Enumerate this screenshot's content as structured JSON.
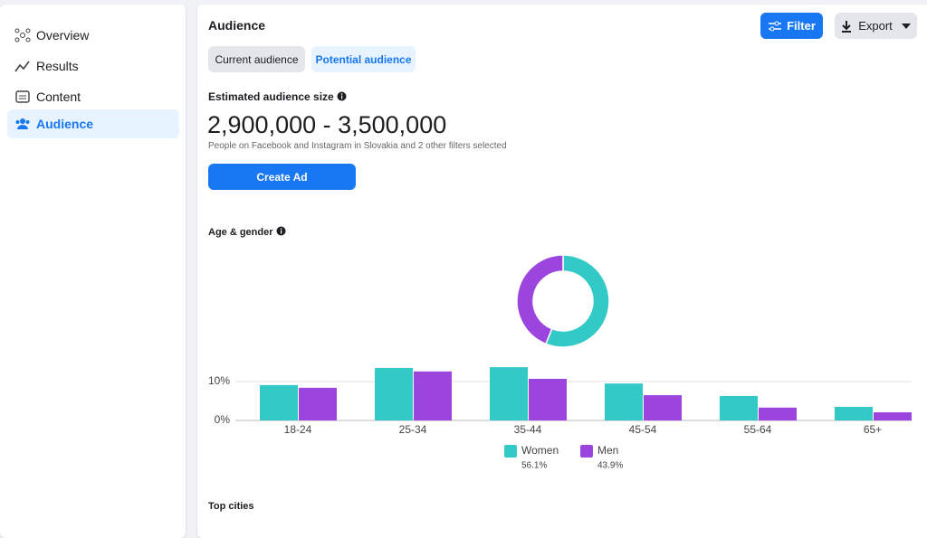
{
  "sidebar": {
    "items": [
      "Overview",
      "Results",
      "Content",
      "Audience"
    ]
  },
  "header": {
    "title": "Audience",
    "filter": "Filter",
    "export": "Export"
  },
  "tabs": [
    "Current audience",
    "Potential audience"
  ],
  "estimate": {
    "label": "Estimated audience size",
    "range": "2,900,000 - 3,500,000",
    "description": "People on Facebook and Instagram in Slovakia and 2 other filters selected",
    "button": "Create Ad"
  },
  "section": {
    "age_gender": "Age & gender",
    "top_cities": "Top cities"
  },
  "chart_data": [
    {
      "type": "pie",
      "donut": true,
      "values": [
        56.1,
        43.9
      ],
      "value_labels": [
        "56.1%",
        "43.9%"
      ],
      "colors": [
        "#33c9c7",
        "#9b44de"
      ]
    },
    {
      "type": "bar",
      "categories": [
        "18-24",
        "25-34",
        "35-44",
        "45-54",
        "55-64",
        "65+"
      ],
      "series": [
        {
          "name": "Women",
          "color": "#33c9c7",
          "values": [
            9.1,
            13.5,
            13.7,
            9.5,
            6.3,
            3.5
          ]
        },
        {
          "name": "Men",
          "color": "#9b44de",
          "values": [
            8.4,
            12.6,
            10.7,
            6.5,
            3.3,
            2.1
          ]
        }
      ],
      "ylim": [
        0,
        15
      ],
      "yticks": [
        {
          "value": 0,
          "label": "0%"
        },
        {
          "value": 10,
          "label": "10%"
        }
      ],
      "grid": true
    }
  ]
}
